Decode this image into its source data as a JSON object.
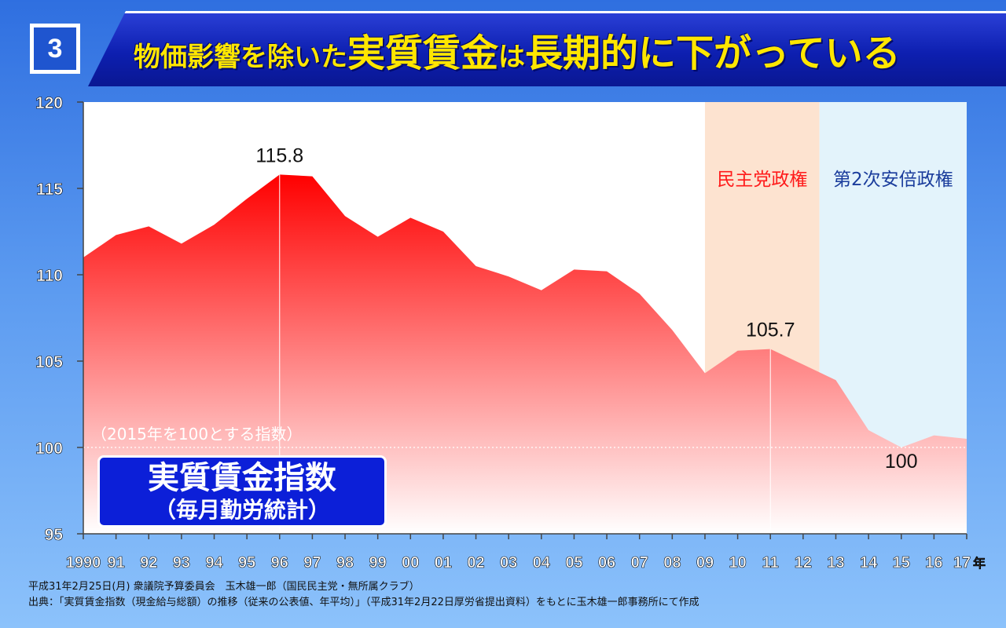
{
  "slide_number": "3",
  "title": {
    "part1": "物価影響を除いた",
    "part2": "実質賃金",
    "part3": "は",
    "part4": "長期的に下がっている"
  },
  "colors": {
    "area_top": "#ff0000",
    "area_bottom": "#ffffff",
    "dpj_band": "#fde3d0",
    "abe_band": "#e3f3fb",
    "dpj_text": "#ff1a1a",
    "abe_text": "#1a3c9c",
    "label_box": "#0c1fd8"
  },
  "chart_data": {
    "type": "area",
    "x": [
      "1990",
      "91",
      "92",
      "93",
      "94",
      "95",
      "96",
      "97",
      "98",
      "99",
      "00",
      "01",
      "02",
      "03",
      "04",
      "05",
      "06",
      "07",
      "08",
      "09",
      "10",
      "11",
      "12",
      "13",
      "14",
      "15",
      "16",
      "17"
    ],
    "x_unit": "年",
    "values": [
      111.0,
      112.3,
      112.8,
      111.8,
      112.9,
      114.4,
      115.8,
      115.7,
      113.4,
      112.2,
      113.3,
      112.5,
      110.5,
      109.9,
      109.1,
      110.3,
      110.2,
      108.9,
      106.8,
      104.3,
      105.6,
      105.7,
      104.8,
      103.9,
      101.0,
      100.0,
      100.7,
      100.5
    ],
    "ylim": [
      95,
      120
    ],
    "yticks": [
      "95",
      "100",
      "105",
      "110",
      "115",
      "120"
    ],
    "note": "（2015年を100とする指数）",
    "annotations": [
      {
        "x": "96",
        "label": "115.8"
      },
      {
        "x": "11",
        "label": "105.7"
      },
      {
        "x": "15",
        "label": "100"
      }
    ],
    "periods": [
      {
        "label": "民主党政権",
        "from": "09",
        "to": "12"
      },
      {
        "label": "第2次安倍政権",
        "from": "12",
        "to": "17"
      }
    ],
    "series_label": {
      "line1": "実質賃金指数",
      "line2": "（毎月勤労統計）"
    }
  },
  "footer": {
    "line1": "平成31年2月25日(月) 衆議院予算委員会　玉木雄一郎（国民民主党・無所属クラブ）",
    "line2": "出典：「実質賃金指数（現金給与総額）の推移（従来の公表値、年平均）」（平成31年2月22日厚労省提出資料）をもとに玉木雄一郎事務所にて作成"
  }
}
